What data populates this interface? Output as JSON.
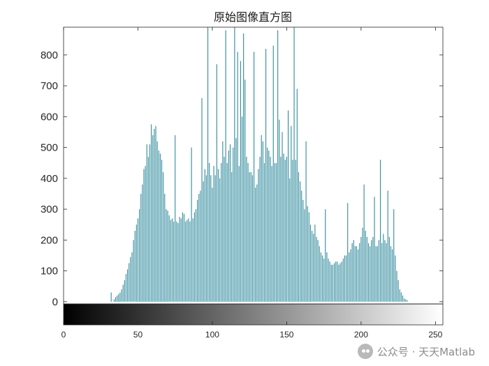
{
  "chart_data": {
    "type": "bar",
    "title": "原始图像直方图",
    "xlim": [
      0,
      255
    ],
    "ylim": [
      -75,
      890
    ],
    "xticks": [
      0,
      50,
      100,
      150,
      200,
      250
    ],
    "yticks": [
      0,
      100,
      200,
      300,
      400,
      500,
      600,
      700,
      800
    ],
    "bar_color": "#2f8a9c",
    "colorbar": "grayscale 0-255",
    "x": [
      32,
      34,
      35,
      36,
      37,
      38,
      39,
      40,
      41,
      42,
      43,
      44,
      45,
      46,
      47,
      48,
      49,
      50,
      51,
      52,
      53,
      54,
      55,
      56,
      57,
      58,
      59,
      60,
      61,
      62,
      63,
      64,
      65,
      66,
      67,
      68,
      69,
      70,
      71,
      72,
      73,
      74,
      75,
      76,
      77,
      78,
      79,
      80,
      81,
      82,
      83,
      84,
      85,
      86,
      87,
      88,
      89,
      90,
      91,
      92,
      93,
      94,
      95,
      96,
      97,
      98,
      99,
      100,
      101,
      102,
      103,
      104,
      105,
      106,
      107,
      108,
      109,
      110,
      111,
      112,
      113,
      114,
      115,
      116,
      117,
      118,
      119,
      120,
      121,
      122,
      123,
      124,
      125,
      126,
      127,
      128,
      129,
      130,
      131,
      132,
      133,
      134,
      135,
      136,
      137,
      138,
      139,
      140,
      141,
      142,
      143,
      144,
      145,
      146,
      147,
      148,
      149,
      150,
      151,
      152,
      153,
      154,
      155,
      156,
      157,
      158,
      159,
      160,
      161,
      162,
      163,
      164,
      165,
      166,
      167,
      168,
      169,
      170,
      171,
      172,
      173,
      174,
      175,
      176,
      177,
      178,
      179,
      180,
      181,
      182,
      183,
      184,
      185,
      186,
      187,
      188,
      189,
      190,
      191,
      192,
      193,
      194,
      195,
      196,
      197,
      198,
      199,
      200,
      201,
      202,
      203,
      204,
      205,
      206,
      207,
      208,
      209,
      210,
      211,
      212,
      213,
      214,
      215,
      216,
      217,
      218,
      219,
      220,
      221,
      222,
      223,
      224,
      225,
      226,
      227,
      228,
      229,
      230,
      231
    ],
    "values": [
      30,
      8,
      15,
      20,
      25,
      30,
      40,
      55,
      70,
      90,
      105,
      125,
      145,
      160,
      200,
      230,
      250,
      270,
      300,
      350,
      380,
      430,
      440,
      510,
      470,
      510,
      575,
      540,
      560,
      570,
      520,
      490,
      480,
      460,
      420,
      350,
      300,
      295,
      280,
      265,
      270,
      260,
      540,
      260,
      255,
      275,
      270,
      290,
      285,
      260,
      265,
      270,
      260,
      500,
      270,
      290,
      300,
      330,
      350,
      360,
      660,
      390,
      430,
      410,
      890,
      450,
      410,
      370,
      440,
      410,
      770,
      430,
      400,
      450,
      520,
      470,
      880,
      450,
      490,
      510,
      420,
      500,
      890,
      530,
      810,
      440,
      780,
      600,
      870,
      720,
      470,
      450,
      420,
      420,
      410,
      810,
      370,
      380,
      430,
      470,
      540,
      520,
      450,
      820,
      500,
      490,
      470,
      440,
      830,
      450,
      450,
      880,
      590,
      470,
      550,
      480,
      460,
      470,
      620,
      400,
      570,
      460,
      890,
      460,
      690,
      420,
      390,
      360,
      330,
      300,
      520,
      310,
      290,
      250,
      230,
      220,
      250,
      210,
      200,
      180,
      160,
      150,
      140,
      300,
      160,
      140,
      130,
      120,
      120,
      125,
      130,
      130,
      120,
      125,
      130,
      140,
      150,
      150,
      320,
      160,
      170,
      190,
      200,
      180,
      180,
      170,
      190,
      210,
      240,
      380,
      230,
      210,
      190,
      180,
      200,
      210,
      340,
      180,
      180,
      200,
      460,
      190,
      220,
      200,
      190,
      360,
      210,
      180,
      170,
      300,
      150,
      100,
      70,
      40,
      30,
      20,
      10,
      8,
      5
    ]
  }
}
